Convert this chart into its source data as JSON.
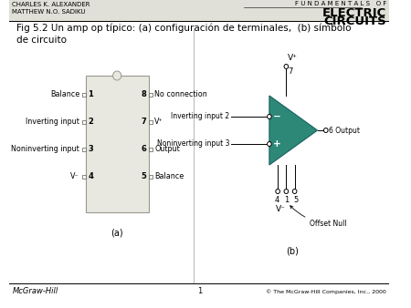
{
  "header_line1": "CHARLES K. ALEXANDER",
  "header_line2": "MATTHEW N.O. SADIKU",
  "header_right1": "F U N D A M E N T A L S   O F",
  "header_right2": "ELECTRIC",
  "header_right3": "CIRCUITS",
  "title": "Fig 5.2 Un amp op típico: (a) configuración de terminales,  (b) símbolo\nde circuito",
  "footer_left": "McGraw-Hill",
  "footer_center": "1",
  "footer_right": "© The McGraw-Hill Companies, Inc., 2000",
  "ic_color": "#e8e8e0",
  "ic_edge_color": "#999990",
  "triangle_color": "#2d8878",
  "triangle_edge": "#1a6060",
  "label_a": "(a)",
  "label_b": "(b)",
  "header_bg": "#e0e0d8",
  "divider_color": "#bbbbbb"
}
